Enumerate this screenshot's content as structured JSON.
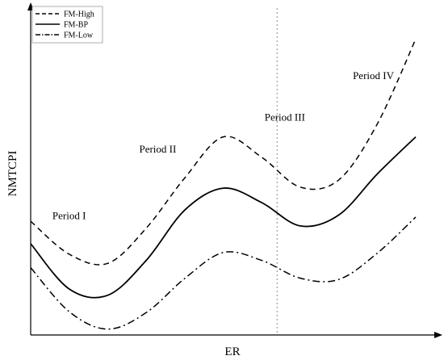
{
  "chart_data": {
    "type": "line",
    "title": "",
    "xlabel": "ER",
    "ylabel": "NMTCPI",
    "grid": false,
    "legend_position": "top-left",
    "xlim": [
      0,
      100
    ],
    "ylim": [
      0,
      100
    ],
    "x": [
      0,
      10,
      20,
      30,
      40,
      50,
      60,
      70,
      80,
      90,
      100
    ],
    "series": [
      {
        "name": "FM-High",
        "style": "dashed",
        "values": [
          34.6,
          24.6,
          21.8,
          32.5,
          47.8,
          60.3,
          54.1,
          45.0,
          47.2,
          64.2,
          90.1
        ]
      },
      {
        "name": "FM-BP",
        "style": "solid",
        "values": [
          27.8,
          14.0,
          12.1,
          22.7,
          38.0,
          44.7,
          40.3,
          33.2,
          36.5,
          49.0,
          60.3
        ]
      },
      {
        "name": "FM-Low",
        "style": "dashdot",
        "values": [
          20.5,
          7.1,
          1.8,
          6.8,
          17.2,
          25.1,
          22.7,
          17.3,
          16.9,
          24.9,
          35.9
        ]
      }
    ],
    "vertical_marker": {
      "x": 64,
      "style": "dotted"
    },
    "annotations": [
      {
        "text": "Period I",
        "x": 10,
        "y": 35.3
      },
      {
        "text": "Period II",
        "x": 33,
        "y": 55.5
      },
      {
        "text": "Period III",
        "x": 66,
        "y": 65.2
      },
      {
        "text": "Period IV",
        "x": 89,
        "y": 77.9
      }
    ]
  },
  "colors": {
    "line": "#000000",
    "marker": "#888888",
    "background": "#ffffff"
  }
}
